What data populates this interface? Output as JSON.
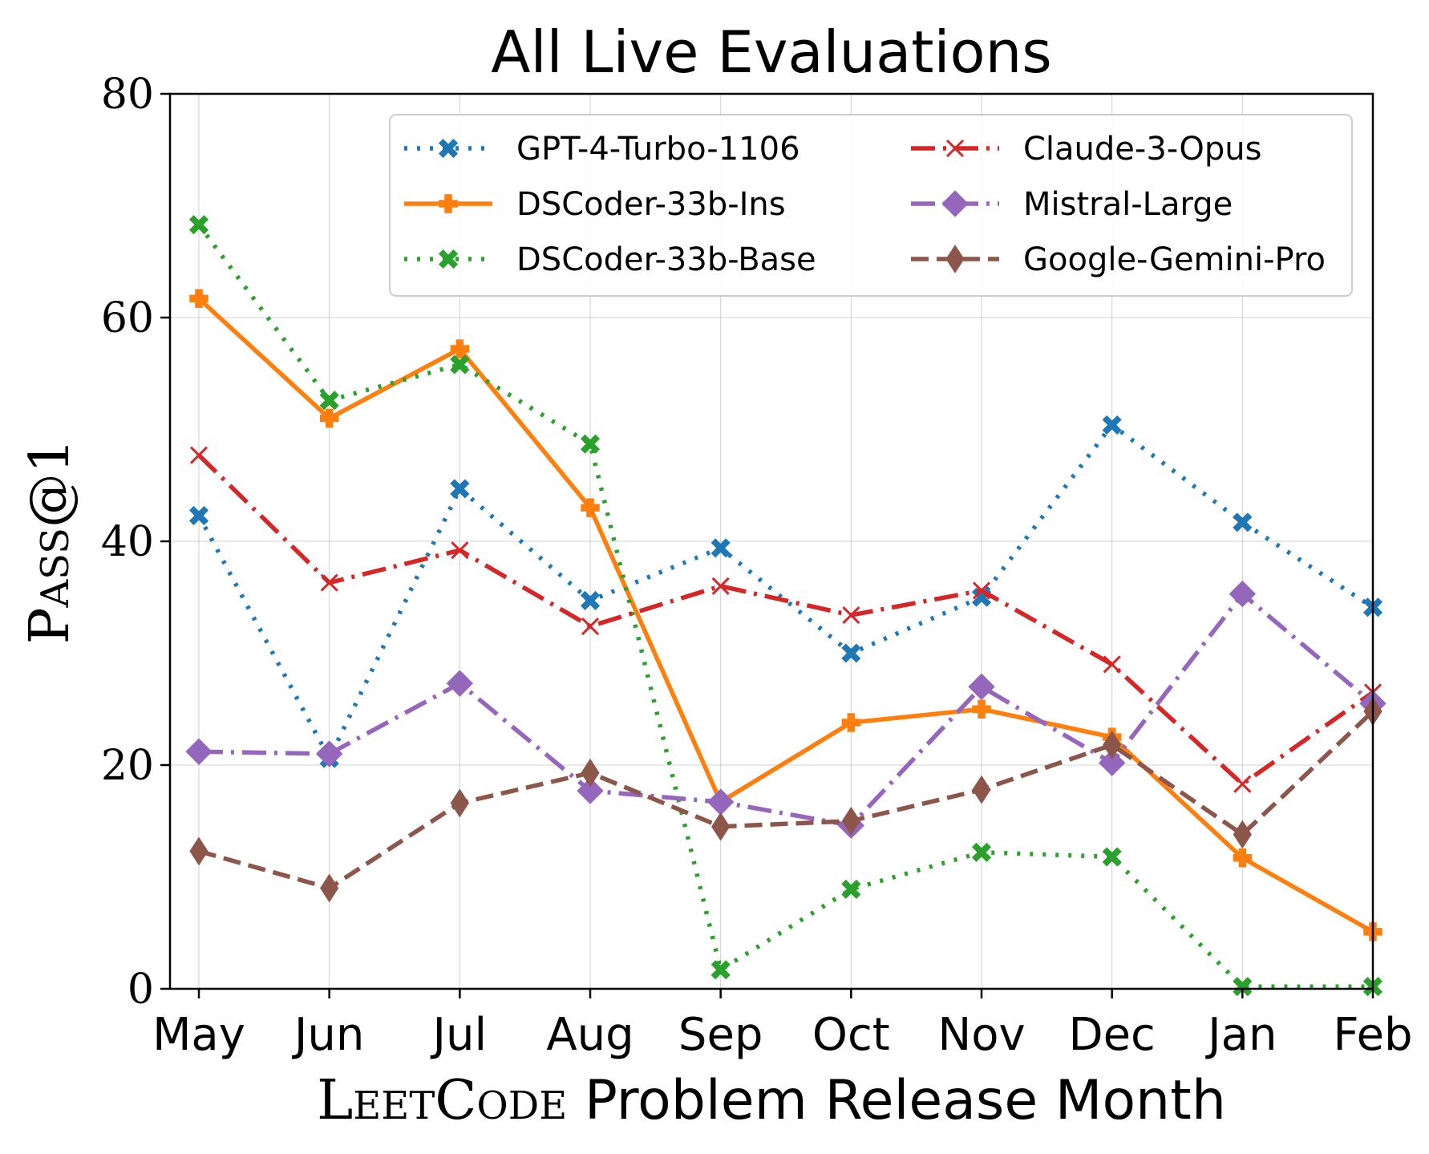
{
  "chart_data": {
    "type": "line",
    "title": "All Live Evaluations",
    "xlabel_prefix": "LeetCode",
    "xlabel_suffix": " Problem Release Month",
    "ylabel": "Pass@1",
    "categories": [
      "May",
      "Jun",
      "Jul",
      "Aug",
      "Sep",
      "Oct",
      "Nov",
      "Dec",
      "Jan",
      "Feb"
    ],
    "ylim": [
      0,
      80
    ],
    "yticks": [
      0,
      20,
      40,
      60,
      80
    ],
    "grid": true,
    "legend_position": "top-right",
    "series": [
      {
        "name": "GPT-4-Turbo-1106",
        "color": "#1f77b4",
        "dash": "dotted",
        "marker": "X",
        "values": [
          42.3,
          20.6,
          44.7,
          34.7,
          39.4,
          30.0,
          35.0,
          50.4,
          41.7,
          34.1
        ]
      },
      {
        "name": "DSCoder-33b-Ins",
        "color": "#ff7f0e",
        "dash": "solid",
        "marker": "P",
        "values": [
          61.7,
          51.0,
          57.2,
          43.0,
          16.7,
          23.8,
          25.0,
          22.5,
          11.7,
          5.1
        ]
      },
      {
        "name": "DSCoder-33b-Base",
        "color": "#2ca02c",
        "dash": "dotted",
        "marker": "X",
        "values": [
          68.3,
          52.6,
          55.8,
          48.7,
          1.7,
          8.9,
          12.2,
          11.8,
          0.2,
          0.2
        ]
      },
      {
        "name": "Claude-3-Opus",
        "color": "#d62728",
        "dash": "dashdot",
        "marker": "x",
        "values": [
          47.7,
          36.3,
          39.2,
          32.4,
          36.0,
          33.4,
          35.6,
          29.0,
          18.3,
          26.5
        ]
      },
      {
        "name": "Mistral-Large",
        "color": "#9467bd",
        "dash": "dashdot",
        "marker": "D",
        "values": [
          21.2,
          21.0,
          27.3,
          17.7,
          16.7,
          14.6,
          27.0,
          20.2,
          35.3,
          25.5
        ]
      },
      {
        "name": "Google-Gemini-Pro",
        "color": "#8c564b",
        "dash": "dashed",
        "marker": "d",
        "values": [
          12.3,
          9.0,
          16.6,
          19.3,
          14.5,
          15.0,
          17.8,
          21.8,
          13.8,
          24.8
        ]
      }
    ]
  }
}
